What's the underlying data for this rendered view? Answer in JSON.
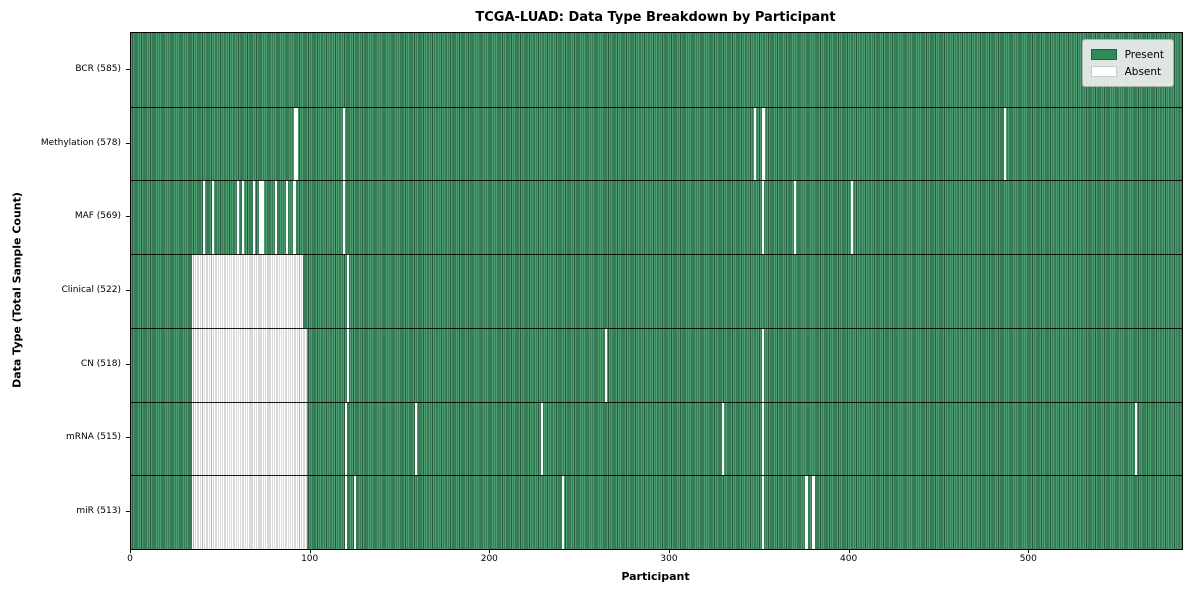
{
  "title": "TCGA-LUAD: Data Type Breakdown by Participant",
  "legend": {
    "present_label": "Present",
    "absent_label": "Absent"
  },
  "colors": {
    "present": "#2e8b57",
    "present_stripe_light": "#4d9e70",
    "present_stripe_dark": "#235b3e",
    "absent": "#ffffff",
    "absent_edge": "#b3b3b3",
    "legend_bg": "#eceeec",
    "legend_border": "#b0b0b0"
  },
  "chart_data": {
    "type": "heatmap",
    "title": "TCGA-LUAD: Data Type Breakdown by Participant",
    "xlabel": "Participant",
    "ylabel": "Data Type (Total Sample Count)",
    "x_ticks": [
      0,
      100,
      200,
      300,
      400,
      500
    ],
    "x_range": [
      0,
      585
    ],
    "n_participants": 585,
    "grid": false,
    "legend_entries": [
      "Present",
      "Absent"
    ],
    "legend_position": "upper right",
    "cell_states": {
      "present": "green",
      "absent": "white"
    },
    "rows": [
      {
        "data_type": "BCR",
        "sample_count": 585,
        "label": "BCR (585)",
        "absent_runs": []
      },
      {
        "data_type": "Methylation",
        "sample_count": 578,
        "label": "Methylation (578)",
        "absent_runs": [
          [
            91,
            92
          ],
          [
            118,
            118
          ],
          [
            347,
            347
          ],
          [
            351,
            352
          ],
          [
            486,
            486
          ]
        ]
      },
      {
        "data_type": "MAF",
        "sample_count": 569,
        "label": "MAF (569)",
        "absent_runs": [
          [
            40,
            40
          ],
          [
            45,
            45
          ],
          [
            59,
            59
          ],
          [
            62,
            62
          ],
          [
            68,
            68
          ],
          [
            71,
            73
          ],
          [
            80,
            80
          ],
          [
            86,
            86
          ],
          [
            90,
            91
          ],
          [
            118,
            118
          ],
          [
            351,
            351
          ],
          [
            369,
            369
          ],
          [
            401,
            401
          ]
        ]
      },
      {
        "data_type": "Clinical",
        "sample_count": 522,
        "label": "Clinical (522)",
        "absent_runs": [
          [
            34,
            95
          ],
          [
            120,
            120
          ]
        ]
      },
      {
        "data_type": "CN",
        "sample_count": 518,
        "label": "CN (518)",
        "absent_runs": [
          [
            34,
            97
          ],
          [
            120,
            120
          ],
          [
            264,
            264
          ],
          [
            351,
            351
          ]
        ]
      },
      {
        "data_type": "mRNA",
        "sample_count": 515,
        "label": "mRNA (515)",
        "absent_runs": [
          [
            34,
            97
          ],
          [
            119,
            119
          ],
          [
            158,
            158
          ],
          [
            228,
            228
          ],
          [
            329,
            329
          ],
          [
            351,
            351
          ],
          [
            559,
            559
          ]
        ]
      },
      {
        "data_type": "miR",
        "sample_count": 513,
        "label": "miR (513)",
        "absent_runs": [
          [
            34,
            97
          ],
          [
            119,
            119
          ],
          [
            124,
            124
          ],
          [
            240,
            240
          ],
          [
            351,
            351
          ],
          [
            375,
            376
          ],
          [
            379,
            380
          ]
        ]
      }
    ]
  }
}
